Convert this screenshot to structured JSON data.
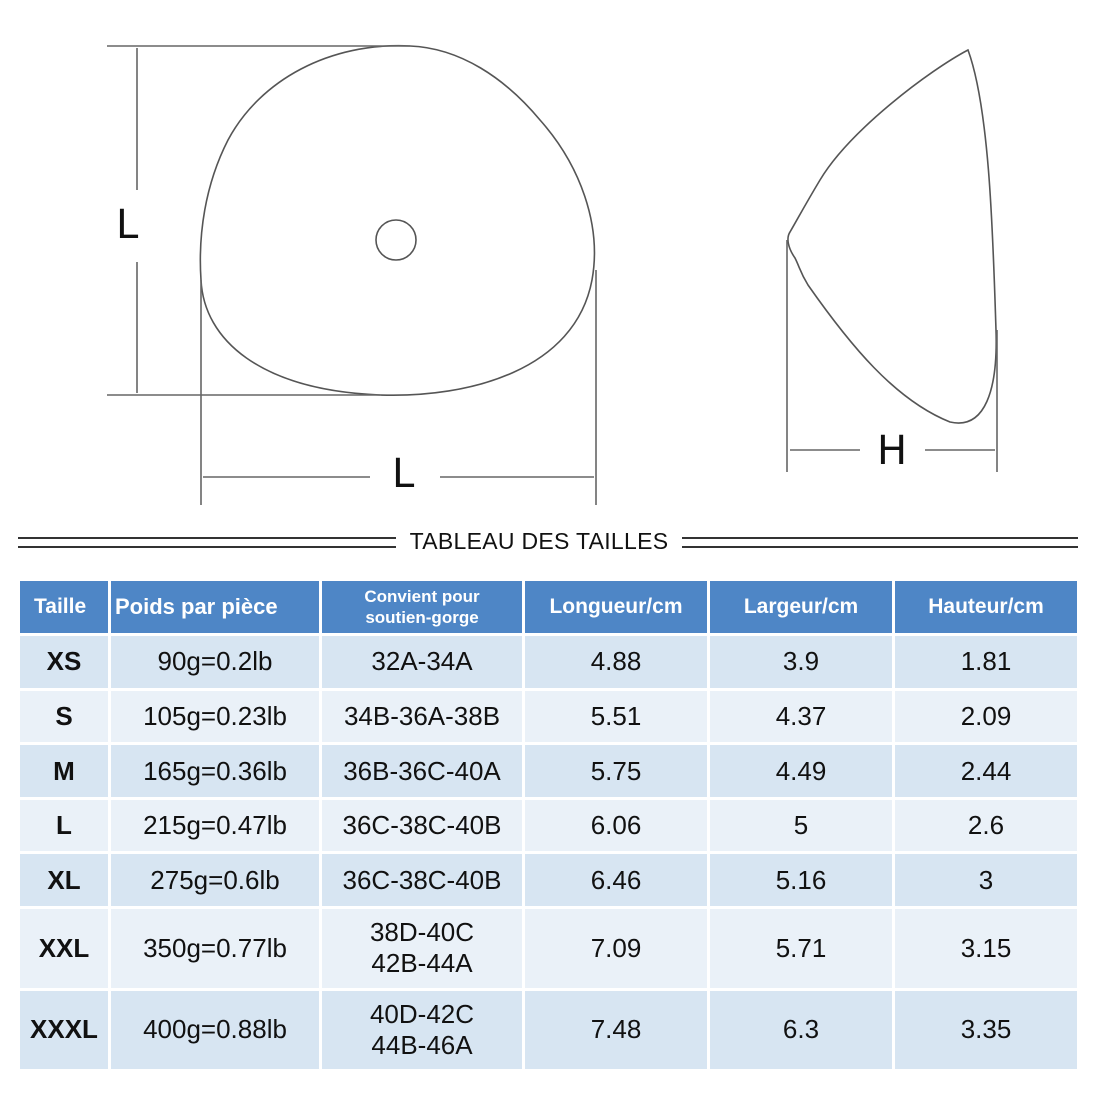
{
  "diagram": {
    "front_height_label": "L",
    "front_width_label": "L",
    "side_height_label": "H"
  },
  "section_title": "TABLEAU DES TAILLES",
  "table": {
    "headers": {
      "size": "Taille",
      "weight": "Poids par pièce",
      "bra_line1": "Convient pour",
      "bra_line2": "soutien-gorge",
      "length": "Longueur/cm",
      "width": "Largeur/cm",
      "height": "Hauteur/cm"
    },
    "rows": [
      {
        "size": "XS",
        "weight": "90g=0.2lb",
        "bra": [
          "32A-34A"
        ],
        "length": "4.88",
        "width": "3.9",
        "height": "1.81"
      },
      {
        "size": "S",
        "weight": "105g=0.23lb",
        "bra": [
          "34B-36A-38B"
        ],
        "length": "5.51",
        "width": "4.37",
        "height": "2.09"
      },
      {
        "size": "M",
        "weight": "165g=0.36lb",
        "bra": [
          "36B-36C-40A"
        ],
        "length": "5.75",
        "width": "4.49",
        "height": "2.44"
      },
      {
        "size": "L",
        "weight": "215g=0.47lb",
        "bra": [
          "36C-38C-40B"
        ],
        "length": "6.06",
        "width": "5",
        "height": "2.6"
      },
      {
        "size": "XL",
        "weight": "275g=0.6lb",
        "bra": [
          "36C-38C-40B"
        ],
        "length": "6.46",
        "width": "5.16",
        "height": "3"
      },
      {
        "size": "XXL",
        "weight": "350g=0.77lb",
        "bra": [
          "38D-40C",
          "42B-44A"
        ],
        "length": "7.09",
        "width": "5.71",
        "height": "3.15"
      },
      {
        "size": "XXXL",
        "weight": "400g=0.88lb",
        "bra": [
          "40D-42C",
          "44B-46A"
        ],
        "length": "7.48",
        "width": "6.3",
        "height": "3.35"
      }
    ]
  }
}
